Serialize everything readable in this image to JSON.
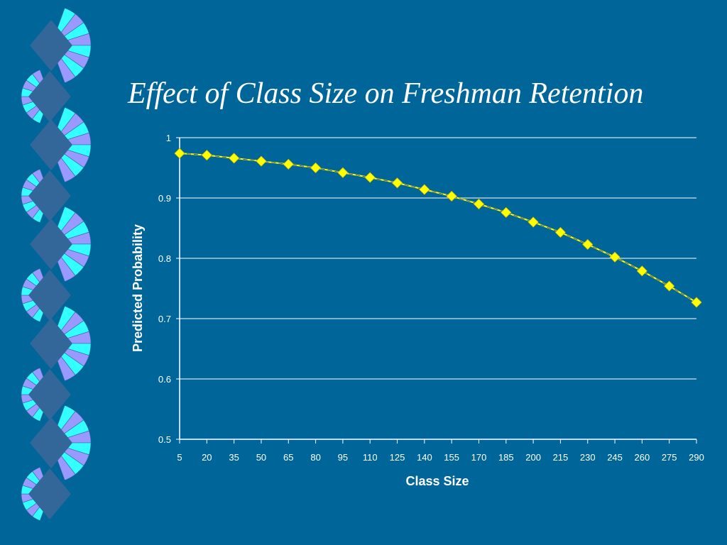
{
  "slide": {
    "title": "Effect of Class Size on Freshman Retention",
    "background": "#006699"
  },
  "decoration": {
    "name": "fan-border",
    "colors": [
      "#33ffff",
      "#9999ff",
      "#336699"
    ]
  },
  "chart_data": {
    "type": "line",
    "title": "",
    "xlabel": "Class Size",
    "ylabel": "Predicted Probability",
    "categories": [
      "5",
      "20",
      "35",
      "50",
      "65",
      "80",
      "95",
      "110",
      "125",
      "140",
      "155",
      "170",
      "185",
      "200",
      "215",
      "230",
      "245",
      "260",
      "275",
      "290"
    ],
    "series": [
      {
        "values": [
          0.974,
          0.971,
          0.966,
          0.961,
          0.956,
          0.95,
          0.942,
          0.934,
          0.925,
          0.914,
          0.903,
          0.89,
          0.876,
          0.86,
          0.843,
          0.823,
          0.802,
          0.779,
          0.754,
          0.727
        ],
        "color": "#ffff00",
        "marker": "diamond"
      }
    ],
    "ylim": [
      0.5,
      1
    ],
    "yticks": [
      "0.5",
      "0.6",
      "0.7",
      "0.8",
      "0.9",
      "1"
    ],
    "grid": true,
    "legend": "none",
    "text_color": "#ffffff"
  }
}
